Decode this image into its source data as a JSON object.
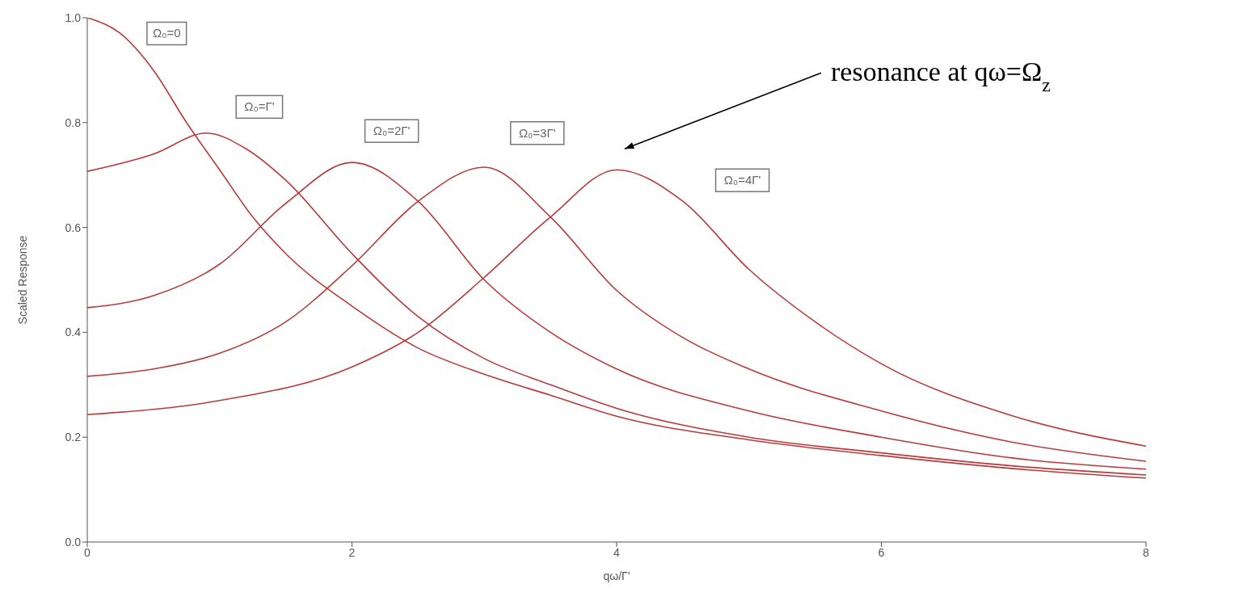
{
  "chart_data": {
    "type": "line",
    "xlabel": "qω/Γ'",
    "ylabel": "Scaled Response",
    "xlim": [
      0,
      8
    ],
    "ylim": [
      0,
      1
    ],
    "xticks": [
      0,
      2,
      4,
      6,
      8
    ],
    "yticks": [
      {
        "value": 0,
        "label": "0.0"
      },
      0.2,
      0.4,
      0.6,
      0.8,
      {
        "value": 1,
        "label": "1.0"
      }
    ],
    "marker": "none",
    "line_style": "solid",
    "series": [
      {
        "color": "#b83a3a",
        "x": [
          0,
          0.25,
          0.5,
          0.75,
          1,
          1.25,
          1.5,
          2,
          2.5,
          3,
          3.5,
          4,
          5,
          6,
          7,
          8
        ],
        "values": [
          1.0,
          0.97,
          0.9,
          0.8,
          0.71,
          0.62,
          0.55,
          0.45,
          0.37,
          0.32,
          0.28,
          0.24,
          0.195,
          0.165,
          0.14,
          0.122
        ]
      },
      {
        "color": "#b83a3a",
        "x": [
          0,
          0.5,
          0.9,
          1.2,
          1.5,
          2,
          2.5,
          3,
          3.5,
          4,
          5,
          6,
          7,
          8
        ],
        "values": [
          0.707,
          0.74,
          0.78,
          0.75,
          0.69,
          0.55,
          0.43,
          0.35,
          0.3,
          0.255,
          0.2,
          0.17,
          0.145,
          0.128
        ]
      },
      {
        "color": "#b83a3a",
        "x": [
          0,
          0.5,
          1,
          1.5,
          2,
          2.5,
          3,
          3.5,
          4,
          5,
          6,
          7,
          8
        ],
        "values": [
          0.447,
          0.47,
          0.53,
          0.646,
          0.724,
          0.65,
          0.5,
          0.4,
          0.33,
          0.25,
          0.2,
          0.16,
          0.139
        ]
      },
      {
        "color": "#b83a3a",
        "x": [
          0,
          0.5,
          1,
          1.5,
          2,
          2.5,
          3,
          3.5,
          4,
          4.5,
          5,
          6,
          7,
          8
        ],
        "values": [
          0.316,
          0.33,
          0.36,
          0.42,
          0.527,
          0.65,
          0.715,
          0.62,
          0.48,
          0.39,
          0.33,
          0.25,
          0.19,
          0.154
        ]
      },
      {
        "color": "#b83a3a",
        "x": [
          0,
          1,
          2,
          2.5,
          3,
          3.5,
          4,
          4.5,
          5,
          5.5,
          6,
          7,
          8
        ],
        "values": [
          0.243,
          0.27,
          0.334,
          0.4,
          0.505,
          0.62,
          0.71,
          0.65,
          0.52,
          0.42,
          0.34,
          0.24,
          0.183
        ]
      }
    ],
    "annotations": [
      "Ω₀=0",
      "Ω₀=Γ'",
      "Ω₀=2Γ'",
      "Ω₀=3Γ'",
      "Ω₀=4Γ'",
      "resonance at qω=Ω$_{z}$"
    ]
  }
}
